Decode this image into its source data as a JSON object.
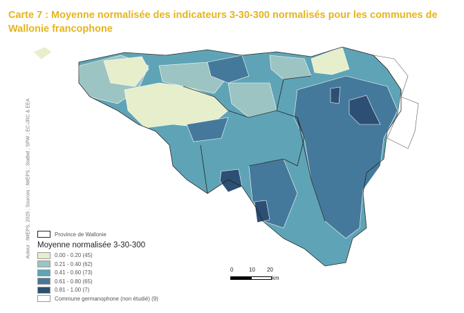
{
  "title": "Carte 7 : Moyenne normalisée des indicateurs 3-30-300 normalisés pour les communes de Wallonie francophone",
  "side_text": "Auteur : IWEPS, 2025 ; Sources : IWEPS ; Statbel ; SPW ; EC-JRC & EEA",
  "legend": {
    "province": "Province de Wallonie",
    "title": "Moyenne normalisée 3-30-300",
    "classes": [
      {
        "label": "0.00 - 0.20 (45)",
        "color": "#e6eecb"
      },
      {
        "label": "0.21 - 0.40 (62)",
        "color": "#9cc4c3"
      },
      {
        "label": "0.41 - 0.60 (73)",
        "color": "#5ea4b6"
      },
      {
        "label": "0.61 - 0.80 (65)",
        "color": "#45799b"
      },
      {
        "label": "0.81 - 1.00 (7)",
        "color": "#2c4f73"
      },
      {
        "label": "Commune germanophone (non étudié) (9)",
        "color": "#ffffff"
      }
    ]
  },
  "scale": {
    "t0": "0",
    "t1": "10",
    "t2": "20",
    "unit": "km"
  }
}
